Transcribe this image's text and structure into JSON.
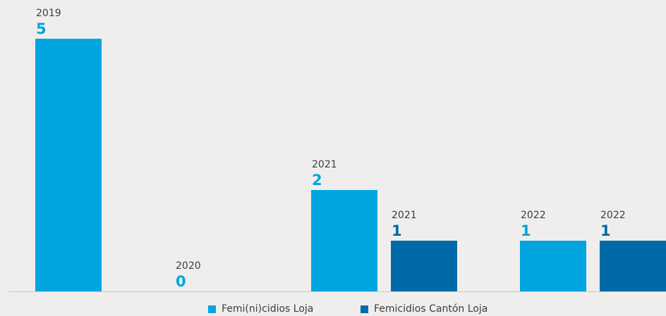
{
  "colors": {
    "series_1": "#00a5e0",
    "series_2": "#006aa8",
    "text": "#3c3c3c"
  },
  "chart_data": {
    "type": "bar",
    "title": "",
    "xlabel": "",
    "ylabel": "",
    "ylim": [
      0,
      5
    ],
    "grid": false,
    "legend_position": "bottom",
    "categories": [
      "2019",
      "2020",
      "2021",
      "2022"
    ],
    "series": [
      {
        "name": "Femi(ni)cidios Loja",
        "color": "#00a5e0",
        "values": [
          5,
          0,
          2,
          1
        ]
      },
      {
        "name": "Femicidios Cantón Loja",
        "color": "#006aa8",
        "values": [
          null,
          null,
          1,
          1
        ]
      }
    ]
  }
}
